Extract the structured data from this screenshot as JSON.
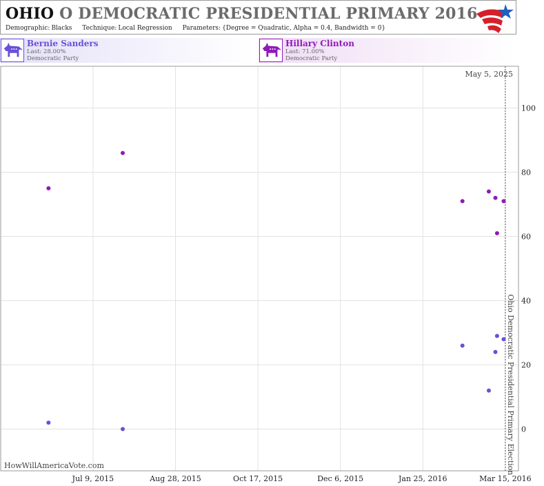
{
  "header": {
    "state": "OHIO",
    "title_rest": "O DEMOCRATIC PRESIDENTIAL PRIMARY 2016",
    "demographic_label": "Demographic:",
    "demographic": "Blacks",
    "technique_label": "Technique:",
    "technique": "Local Regression",
    "parameters_label": "Parameters:",
    "parameters": "{Degree = Quadratic, Alpha = 0.4, Bandwidth = 0}"
  },
  "candidates": [
    {
      "name": "Bernie Sanders",
      "last": "Last: 28.00%",
      "party": "Democratic Party",
      "color": "#6a4fd8",
      "icon": "democratic-donkey-icon"
    },
    {
      "name": "Hillary Clinton",
      "last": "Last: 71.00%",
      "party": "Democratic Party",
      "color": "#8f1ab8",
      "icon": "democratic-donkey-icon"
    }
  ],
  "watermark": "HowWillAmericaVote.com",
  "chart_data": {
    "type": "scatter",
    "x_ticks": [
      "Jul 9, 2015",
      "Aug 28, 2015",
      "Oct 17, 2015",
      "Dec 6, 2015",
      "Jan 25, 2016",
      "Mar 15, 2016"
    ],
    "xlim": [
      "2015-05-14",
      "2016-03-23"
    ],
    "y_ticks": [
      0,
      20,
      40,
      60,
      80,
      100
    ],
    "ylim": [
      -13,
      113
    ],
    "grid": true,
    "current_date_label": "May 5, 2025",
    "event": {
      "date": "2016-03-15",
      "label": "Ohio Democratic Presidential Primary Election"
    },
    "series": [
      {
        "name": "Bernie Sanders",
        "color": "#6a4fd8",
        "points": [
          {
            "x": "2015-06-12",
            "y": 2
          },
          {
            "x": "2015-07-27",
            "y": 0
          },
          {
            "x": "2016-02-18",
            "y": 26
          },
          {
            "x": "2016-03-05",
            "y": 12
          },
          {
            "x": "2016-03-09",
            "y": 24
          },
          {
            "x": "2016-03-10",
            "y": 29
          },
          {
            "x": "2016-03-14",
            "y": 28
          }
        ]
      },
      {
        "name": "Hillary Clinton",
        "color": "#8f1ab8",
        "points": [
          {
            "x": "2015-06-12",
            "y": 75
          },
          {
            "x": "2015-07-27",
            "y": 86
          },
          {
            "x": "2016-02-18",
            "y": 71
          },
          {
            "x": "2016-03-05",
            "y": 74
          },
          {
            "x": "2016-03-09",
            "y": 72
          },
          {
            "x": "2016-03-10",
            "y": 61
          },
          {
            "x": "2016-03-14",
            "y": 71
          }
        ]
      }
    ]
  }
}
